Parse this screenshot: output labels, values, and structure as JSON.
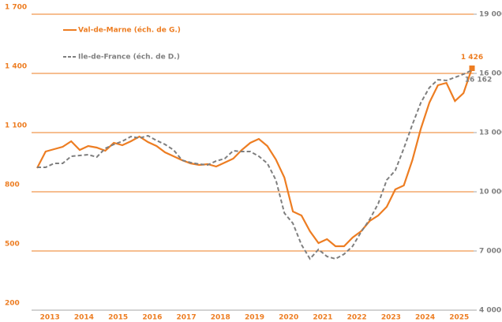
{
  "chart_data": {
    "type": "line",
    "categories": [
      null,
      "2013",
      null,
      null,
      null,
      "2014",
      null,
      null,
      null,
      "2015",
      null,
      null,
      null,
      "2016",
      null,
      null,
      null,
      "2017",
      null,
      null,
      null,
      "2018",
      null,
      null,
      null,
      "2019",
      null,
      null,
      null,
      "2020",
      null,
      null,
      null,
      "2021",
      null,
      null,
      null,
      "2022",
      null,
      null,
      null,
      "2023",
      null,
      null,
      null,
      "2024",
      null,
      null,
      null,
      "2025",
      null,
      null
    ],
    "series": [
      {
        "name": "Val-de-Marne (éch. de G.)",
        "color": "#ed7d22",
        "axis": "y",
        "values": [
          920,
          1004,
          1016,
          1028,
          1056,
          1012,
          1032,
          1024,
          1008,
          1048,
          1036,
          1056,
          1080,
          1052,
          1032,
          1000,
          980,
          960,
          944,
          936,
          940,
          928,
          948,
          968,
          1012,
          1048,
          1068,
          1032,
          964,
          872,
          700,
          680,
          600,
          540,
          560,
          524,
          524,
          568,
          600,
          652,
          680,
          724,
          812,
          832,
          960,
          1120,
          1252,
          1340,
          1352,
          1260,
          1300,
          1426
        ],
        "value_labels": [
          null,
          null,
          null,
          null,
          null,
          null,
          null,
          null,
          null,
          null,
          null,
          null,
          null,
          null,
          null,
          null,
          null,
          null,
          null,
          null,
          null,
          null,
          null,
          null,
          null,
          null,
          null,
          null,
          null,
          null,
          null,
          null,
          null,
          null,
          null,
          null,
          null,
          null,
          null,
          null,
          null,
          null,
          null,
          null,
          null,
          null,
          null,
          null,
          null,
          null,
          null,
          "1 426"
        ]
      },
      {
        "name": "Ile-de-France (éch. de D.)",
        "color": "#7f7f7f",
        "axis": "y2",
        "dashed": true,
        "values": [
          11240,
          11240,
          11440,
          11440,
          11800,
          11840,
          11880,
          11760,
          12200,
          12400,
          12560,
          12800,
          12720,
          12840,
          12600,
          12400,
          12120,
          11600,
          11480,
          11400,
          11360,
          11560,
          11680,
          12080,
          12040,
          12040,
          11800,
          11440,
          10600,
          8920,
          8400,
          7320,
          6600,
          7080,
          6720,
          6600,
          6840,
          7240,
          7960,
          8600,
          9400,
          10600,
          11080,
          12200,
          13400,
          14520,
          15280,
          15680,
          15640,
          15800,
          15960,
          16162
        ],
        "value_labels": [
          null,
          null,
          null,
          null,
          null,
          null,
          null,
          null,
          null,
          null,
          null,
          null,
          null,
          null,
          null,
          null,
          null,
          null,
          null,
          null,
          null,
          null,
          null,
          null,
          null,
          null,
          null,
          null,
          null,
          null,
          null,
          null,
          null,
          null,
          null,
          null,
          null,
          null,
          null,
          null,
          null,
          null,
          null,
          null,
          null,
          null,
          null,
          null,
          null,
          null,
          null,
          "16 162"
        ]
      }
    ],
    "ylim": [
      200,
      1700
    ],
    "yticks": [
      {
        "value": 200,
        "label": "200"
      },
      {
        "value": 500,
        "label": "500"
      },
      {
        "value": 800,
        "label": "800"
      },
      {
        "value": 1100,
        "label": "1 100"
      },
      {
        "value": 1400,
        "label": "1 400"
      },
      {
        "value": 1700,
        "label": "1 700"
      }
    ],
    "y2lim": [
      4000,
      19000
    ],
    "y2ticks": [
      {
        "value": 4000,
        "label": "4 000"
      },
      {
        "value": 7000,
        "label": "7 000"
      },
      {
        "value": 10000,
        "label": "10 000"
      },
      {
        "value": 13000,
        "label": "13 000"
      },
      {
        "value": 16000,
        "label": "16 000"
      },
      {
        "value": 19000,
        "label": "19 000"
      }
    ],
    "grid": true,
    "grid_color": "#ed7d22"
  }
}
